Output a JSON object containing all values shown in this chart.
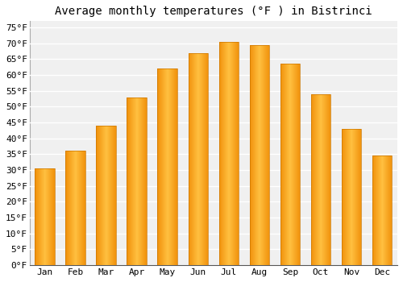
{
  "title": "Average monthly temperatures (°F ) in Bistrinci",
  "months": [
    "Jan",
    "Feb",
    "Mar",
    "Apr",
    "May",
    "Jun",
    "Jul",
    "Aug",
    "Sep",
    "Oct",
    "Nov",
    "Dec"
  ],
  "values": [
    30.5,
    36,
    44,
    53,
    62,
    67,
    70.5,
    69.5,
    63.5,
    54,
    43,
    34.5
  ],
  "bar_color_center": "#FFB733",
  "bar_color_edge": "#F0900A",
  "ylim": [
    0,
    77
  ],
  "yticks": [
    0,
    5,
    10,
    15,
    20,
    25,
    30,
    35,
    40,
    45,
    50,
    55,
    60,
    65,
    70,
    75
  ],
  "ytick_labels": [
    "0°F",
    "5°F",
    "10°F",
    "15°F",
    "20°F",
    "25°F",
    "30°F",
    "35°F",
    "40°F",
    "45°F",
    "50°F",
    "55°F",
    "60°F",
    "65°F",
    "70°F",
    "75°F"
  ],
  "background_color": "#ffffff",
  "plot_bg_color": "#f0f0f0",
  "grid_color": "#ffffff",
  "title_fontsize": 10,
  "tick_fontsize": 8,
  "font_family": "monospace"
}
